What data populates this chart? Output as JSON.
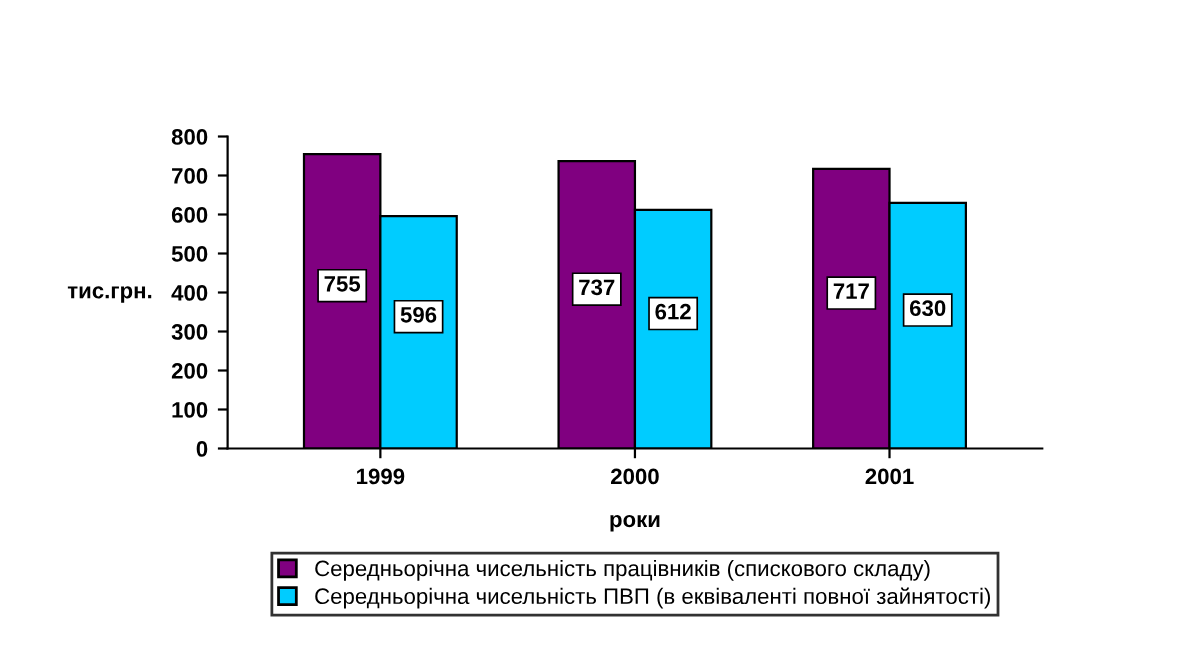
{
  "chart_data": {
    "type": "bar",
    "xlabel": "роки",
    "ylabel": "тис.грн.",
    "categories": [
      "1999",
      "2000",
      "2001"
    ],
    "series": [
      {
        "name": "Середньорічна чисельність працівників (спискового складу)",
        "color": "#800080",
        "values": [
          755,
          737,
          717
        ]
      },
      {
        "name": "Середньорічна чисельність ПВП (в еквіваленті повної зайнятості)",
        "color": "#00ccff",
        "values": [
          596,
          612,
          630
        ]
      }
    ],
    "ylim": [
      0,
      800
    ],
    "yticks": [
      0,
      100,
      200,
      300,
      400,
      500,
      600,
      700,
      800
    ],
    "data_labels": true,
    "grid": false,
    "legend": "bottom"
  }
}
